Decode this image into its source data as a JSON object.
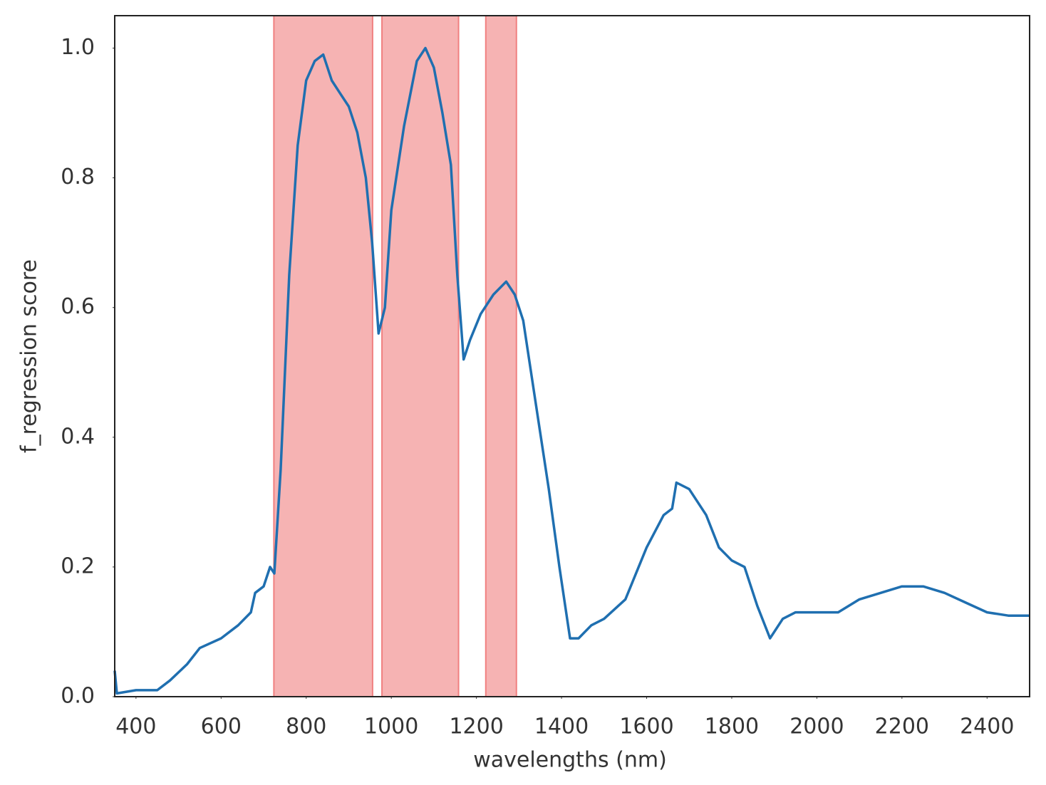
{
  "chart_data": {
    "type": "line",
    "xlabel": "wavelengths (nm)",
    "ylabel": "f_regression score",
    "xlim": [
      350,
      2500
    ],
    "ylim": [
      0,
      1.05
    ],
    "xticks": [
      400,
      600,
      800,
      1000,
      1200,
      1400,
      1600,
      1800,
      2000,
      2200,
      2400
    ],
    "yticks": [
      {
        "value": 0,
        "label": "0.0"
      },
      0.2,
      0.4,
      0.6,
      0.8,
      {
        "value": 1,
        "label": "1.0"
      }
    ],
    "grid": false,
    "span_color": "#f08080",
    "spans": [
      [
        724,
        956
      ],
      [
        978,
        1158
      ],
      [
        1222,
        1294
      ]
    ],
    "series": [
      {
        "name": "f_regression score",
        "color": "#1f6fb0",
        "x": [
          350,
          355,
          400,
          450,
          480,
          520,
          550,
          600,
          640,
          670,
          680,
          700,
          715,
          725,
          740,
          760,
          780,
          800,
          820,
          840,
          860,
          880,
          900,
          920,
          940,
          955,
          970,
          985,
          1000,
          1030,
          1060,
          1080,
          1100,
          1120,
          1140,
          1155,
          1170,
          1185,
          1210,
          1240,
          1270,
          1290,
          1310,
          1340,
          1370,
          1395,
          1420,
          1440,
          1470,
          1500,
          1550,
          1600,
          1640,
          1660,
          1670,
          1700,
          1740,
          1770,
          1800,
          1830,
          1860,
          1890,
          1920,
          1950,
          2000,
          2050,
          2100,
          2150,
          2200,
          2250,
          2300,
          2350,
          2400,
          2450,
          2500
        ],
        "values": [
          0.04,
          0.005,
          0.01,
          0.01,
          0.025,
          0.05,
          0.075,
          0.09,
          0.11,
          0.13,
          0.16,
          0.17,
          0.2,
          0.19,
          0.35,
          0.65,
          0.85,
          0.95,
          0.98,
          0.99,
          0.95,
          0.93,
          0.91,
          0.87,
          0.8,
          0.7,
          0.56,
          0.6,
          0.75,
          0.88,
          0.98,
          1.0,
          0.97,
          0.9,
          0.82,
          0.65,
          0.52,
          0.55,
          0.59,
          0.62,
          0.64,
          0.62,
          0.58,
          0.45,
          0.32,
          0.2,
          0.09,
          0.09,
          0.11,
          0.12,
          0.15,
          0.23,
          0.28,
          0.29,
          0.33,
          0.32,
          0.28,
          0.23,
          0.21,
          0.2,
          0.14,
          0.09,
          0.12,
          0.13,
          0.13,
          0.13,
          0.15,
          0.16,
          0.17,
          0.17,
          0.16,
          0.145,
          0.13,
          0.125,
          0.125
        ]
      }
    ]
  }
}
